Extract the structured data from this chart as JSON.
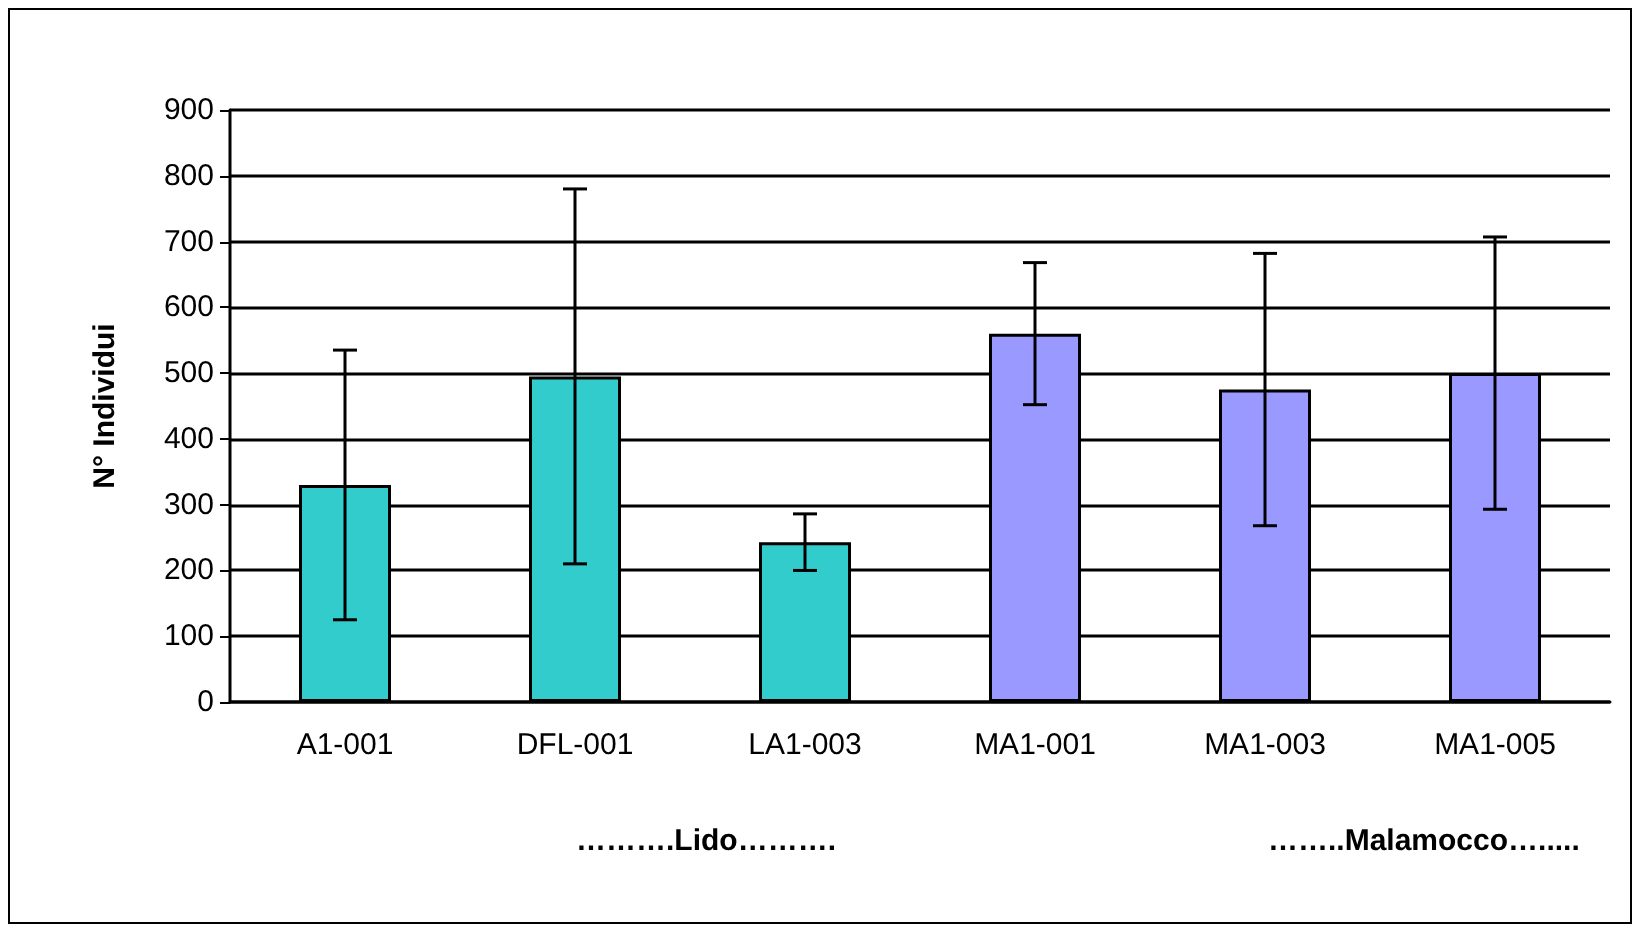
{
  "chart_data": {
    "type": "bar",
    "ylabel": "N° Individui",
    "categories": [
      "A1-001",
      "DFL-001",
      "LA1-003",
      "MA1-001",
      "MA1-003",
      "MA1-005"
    ],
    "values": [
      330,
      495,
      243,
      560,
      475,
      500
    ],
    "colors": [
      "#33cccc",
      "#33cccc",
      "#33cccc",
      "#9999ff",
      "#9999ff",
      "#9999ff"
    ],
    "errors": [
      205,
      285,
      43,
      108,
      207,
      207
    ],
    "ylim": [
      0,
      900
    ],
    "yticks": [
      0,
      100,
      200,
      300,
      400,
      500,
      600,
      700,
      800,
      900
    ],
    "grid": "y",
    "annotations": [
      "……….Lido……….",
      "……..Malamocco…....."
    ]
  }
}
